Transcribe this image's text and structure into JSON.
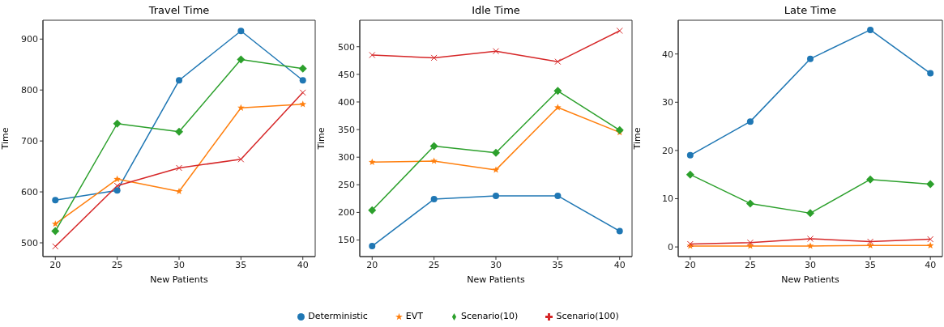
{
  "chart_data": [
    {
      "type": "line",
      "title": "Travel Time",
      "xlabel": "New Patients",
      "ylabel": "Time",
      "x": [
        20,
        25,
        30,
        35,
        40
      ],
      "xlim": [
        19,
        41
      ],
      "xticks": [
        20,
        25,
        30,
        35,
        40
      ],
      "ylim": [
        473,
        937
      ],
      "yticks": [
        500,
        600,
        700,
        800,
        900
      ],
      "series": [
        {
          "color": "#1f77b4",
          "marker": "circle",
          "values": [
            584,
            603,
            819,
            916,
            819
          ]
        },
        {
          "color": "#ff7f0e",
          "marker": "star",
          "values": [
            537,
            625,
            601,
            765,
            772
          ]
        },
        {
          "color": "#2ca02c",
          "marker": "diamond",
          "values": [
            523,
            734,
            718,
            860,
            842
          ]
        },
        {
          "color": "#d62728",
          "marker": "cross",
          "values": [
            493,
            612,
            647,
            664,
            795
          ]
        }
      ]
    },
    {
      "type": "line",
      "title": "Idle Time",
      "xlabel": "New Patients",
      "ylabel": "Time",
      "x": [
        20,
        25,
        30,
        35,
        40
      ],
      "xlim": [
        19,
        41
      ],
      "xticks": [
        20,
        25,
        30,
        35,
        40
      ],
      "ylim": [
        120,
        548
      ],
      "yticks": [
        150,
        200,
        250,
        300,
        350,
        400,
        450,
        500
      ],
      "legend": "bottom",
      "series": [
        {
          "name": "Deterministic",
          "color": "#1f77b4",
          "marker": "circle",
          "values": [
            139,
            224,
            230,
            230,
            166
          ]
        },
        {
          "name": "EVT",
          "color": "#ff7f0e",
          "marker": "star",
          "values": [
            291,
            293,
            277,
            390,
            345
          ]
        },
        {
          "name": "Scenario(10)",
          "color": "#2ca02c",
          "marker": "diamond",
          "values": [
            204,
            320,
            308,
            420,
            349
          ]
        },
        {
          "name": "Scenario(100)",
          "color": "#d62728",
          "marker": "cross",
          "values": [
            485,
            480,
            492,
            473,
            529
          ]
        }
      ]
    },
    {
      "type": "line",
      "title": "Late Time",
      "xlabel": "New Patients",
      "ylabel": "Time",
      "x": [
        20,
        25,
        30,
        35,
        40
      ],
      "xlim": [
        19,
        41
      ],
      "xticks": [
        20,
        25,
        30,
        35,
        40
      ],
      "ylim": [
        -2,
        47
      ],
      "yticks": [
        0,
        10,
        20,
        30,
        40
      ],
      "series": [
        {
          "color": "#1f77b4",
          "marker": "circle",
          "values": [
            19,
            26,
            39,
            45,
            36
          ]
        },
        {
          "color": "#ff7f0e",
          "marker": "star",
          "values": [
            0.2,
            0.2,
            0.2,
            0.3,
            0.3
          ]
        },
        {
          "color": "#2ca02c",
          "marker": "diamond",
          "values": [
            15,
            9,
            7,
            14,
            13
          ]
        },
        {
          "color": "#d62728",
          "marker": "cross",
          "values": [
            0.6,
            0.9,
            1.7,
            1.1,
            1.6
          ]
        }
      ]
    }
  ]
}
